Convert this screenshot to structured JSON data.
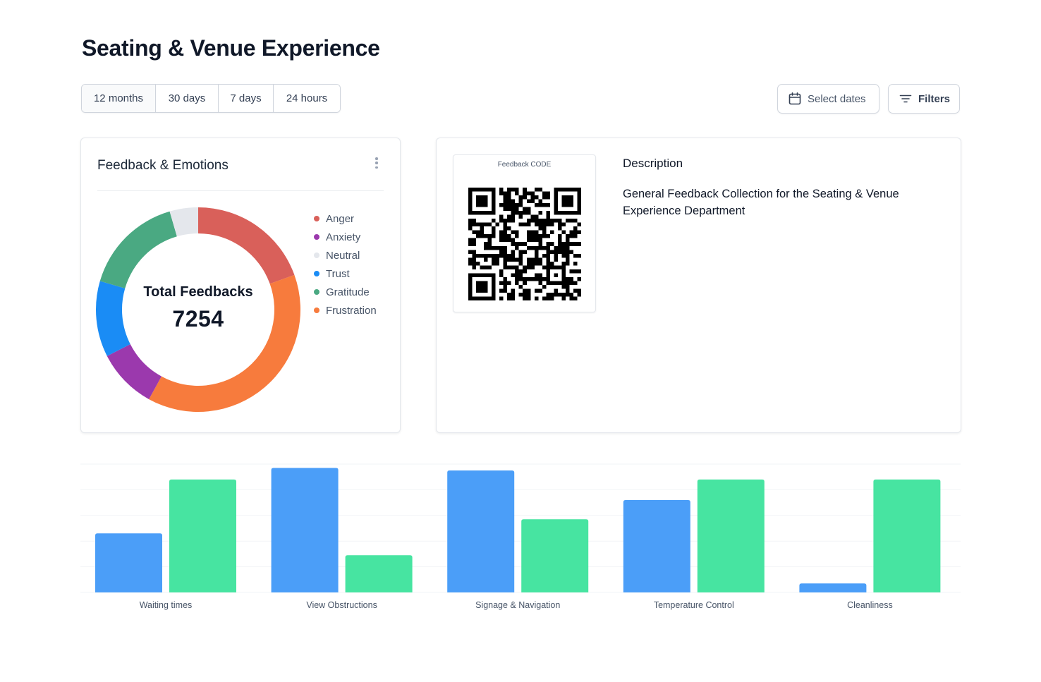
{
  "page": {
    "title": "Seating & Venue Experience"
  },
  "toolbar": {
    "ranges": [
      {
        "label": "12 months",
        "active": true
      },
      {
        "label": "30 days",
        "active": false
      },
      {
        "label": "7 days",
        "active": false
      },
      {
        "label": "24 hours",
        "active": false
      }
    ],
    "select_dates_label": "Select dates",
    "filters_label": "Filters"
  },
  "emotions_card": {
    "title": "Feedback & Emotions",
    "center_label": "Total Feedbacks",
    "center_value": "7254",
    "legend": [
      {
        "label": "Anger",
        "color": "#d9605a"
      },
      {
        "label": "Anxiety",
        "color": "#9b39ad"
      },
      {
        "label": "Neutral",
        "color": "#e4e7ec"
      },
      {
        "label": "Trust",
        "color": "#1a8cf5"
      },
      {
        "label": "Gratitude",
        "color": "#4aa982"
      },
      {
        "label": "Frustration",
        "color": "#f77b3d"
      }
    ]
  },
  "qr_card": {
    "caption": "Feedback CODE",
    "description_title": "Description",
    "description_text": "General Feedback Collection for the Seating & Venue Experience Department"
  },
  "chart_data": [
    {
      "type": "pie",
      "donut": true,
      "center_label": "Total Feedbacks",
      "total": 7254,
      "slices": [
        {
          "label": "Anger",
          "percent": 19.5,
          "color": "#d9605a"
        },
        {
          "label": "Frustration",
          "percent": 38.5,
          "color": "#f77b3d"
        },
        {
          "label": "Anxiety",
          "percent": 9.5,
          "color": "#9b39ad"
        },
        {
          "label": "Trust",
          "percent": 12.0,
          "color": "#1a8cf5"
        },
        {
          "label": "Gratitude",
          "percent": 16.0,
          "color": "#4aa982"
        },
        {
          "label": "Neutral",
          "percent": 4.5,
          "color": "#e4e7ec"
        }
      ]
    },
    {
      "type": "bar",
      "categories": [
        "Waiting times",
        "View Obstructions",
        "Signage & Navigation",
        "Temperature Control",
        "Cleanliness"
      ],
      "series": [
        {
          "values": [
            46,
            97,
            95,
            72,
            7
          ],
          "color": "#4b9ef8"
        },
        {
          "values": [
            88,
            29,
            57,
            88,
            88
          ],
          "color": "#47e4a1"
        }
      ],
      "ylim": [
        0,
        100
      ],
      "grid": true,
      "legend": "none",
      "title": "",
      "xlabel": "",
      "ylabel": ""
    }
  ]
}
